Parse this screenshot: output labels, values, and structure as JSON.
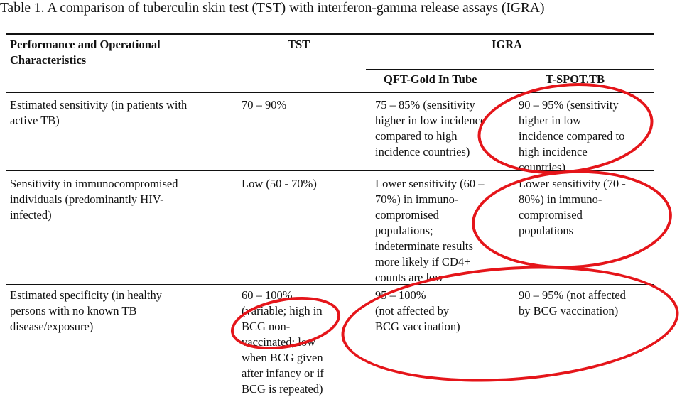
{
  "caption": "Table 1. A comparison of tuberculin skin test (TST) with interferon-gamma release assays (IGRA)",
  "header": {
    "col1_line1": "Performance and Operational",
    "col1_line2": "Characteristics",
    "col2": "TST",
    "group": "IGRA",
    "sub1": "QFT-Gold In Tube",
    "sub2": "T-SPOT.TB"
  },
  "rows": [
    {
      "characteristic": [
        "Estimated sensitivity (in patients with",
        "active TB)"
      ],
      "tst": [
        "70 – 90%"
      ],
      "qft": [
        "75 – 85% (sensitivity",
        "higher in low incidence",
        "compared to high",
        "incidence countries)"
      ],
      "tspot": [
        "90 – 95% (sensitivity",
        "higher in low",
        "incidence compared to",
        "high incidence",
        "countries)"
      ]
    },
    {
      "characteristic": [
        "Sensitivity in immunocompromised",
        "individuals (predominantly HIV-",
        "infected)"
      ],
      "tst": [
        "Low (50 - 70%)"
      ],
      "qft": [
        "Lower sensitivity (60 –",
        "70%) in immuno-",
        "compromised",
        "populations;",
        "indeterminate results",
        "more likely if CD4+",
        "counts are low"
      ],
      "tspot": [
        "Lower sensitivity (70 -",
        "80%) in immuno-",
        "compromised",
        "populations"
      ]
    },
    {
      "characteristic": [
        "Estimated specificity (in healthy",
        "persons with no known TB",
        "disease/exposure)"
      ],
      "tst": [
        "60 – 100%",
        "(variable; high in",
        "BCG non-",
        "vaccinated; low",
        "when BCG given",
        "after infancy or if",
        "BCG is repeated)"
      ],
      "qft": [
        "95 – 100%",
        "(not affected by",
        "BCG vaccination)"
      ],
      "tspot": [
        "90 – 95% (not affected",
        "by BCG vaccination)"
      ]
    }
  ],
  "colors": {
    "annotation": "#e5151a",
    "text": "#111111",
    "background": "#ffffff"
  }
}
